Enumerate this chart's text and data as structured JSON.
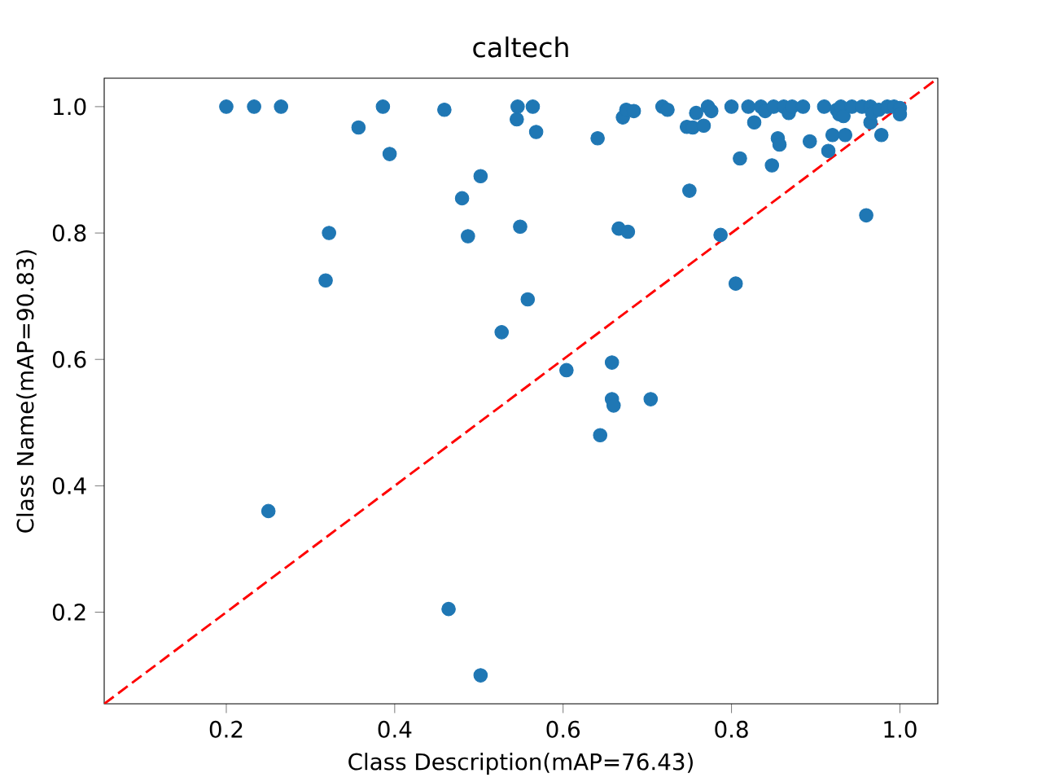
{
  "chart_data": {
    "type": "scatter",
    "title": "caltech",
    "xlabel": "Class Description(mAP=76.43)",
    "ylabel": "Class Name(mAP=90.83)",
    "xlim": [
      0.055,
      1.045
    ],
    "ylim": [
      0.055,
      1.045
    ],
    "xticks": [
      0.2,
      0.4,
      0.6,
      0.8,
      {
        "value": 1.0,
        "label": "1.0"
      }
    ],
    "yticks": [
      0.2,
      0.4,
      0.6,
      0.8,
      {
        "value": 1.0,
        "label": "1.0"
      }
    ],
    "series": [
      {
        "color": "#1f77b4",
        "marker": "circle",
        "x": [
          0.2,
          0.233,
          0.265,
          0.357,
          0.386,
          0.394,
          0.459,
          0.318,
          0.322,
          0.25,
          0.48,
          0.487,
          0.502,
          0.545,
          0.546,
          0.549,
          0.564,
          0.558,
          0.568,
          0.527,
          0.604,
          0.464,
          0.502,
          0.641,
          0.644,
          0.658,
          0.658,
          0.66,
          0.666,
          0.671,
          0.675,
          0.677,
          0.684,
          0.704,
          0.718,
          0.724,
          0.747,
          0.75,
          0.754,
          0.758,
          0.767,
          0.772,
          0.776,
          0.787,
          0.8,
          0.805,
          0.81,
          0.82,
          0.827,
          0.835,
          0.84,
          0.848,
          0.85,
          0.855,
          0.857,
          0.862,
          0.868,
          0.872,
          0.885,
          0.893,
          0.91,
          0.915,
          0.92,
          0.925,
          0.928,
          0.93,
          0.933,
          0.935,
          0.943,
          0.955,
          0.96,
          0.965,
          0.965,
          0.967,
          0.975,
          0.978,
          0.985,
          0.993,
          1.0,
          1.0
        ],
        "values": [
          1.0,
          1.0,
          1.0,
          0.967,
          1.0,
          0.925,
          0.995,
          0.725,
          0.8,
          0.36,
          0.855,
          0.795,
          0.89,
          0.98,
          1.0,
          0.81,
          1.0,
          0.695,
          0.96,
          0.643,
          0.583,
          0.205,
          0.1,
          0.95,
          0.48,
          0.595,
          0.537,
          0.527,
          0.807,
          0.983,
          0.995,
          0.802,
          0.993,
          0.537,
          1.0,
          0.995,
          0.968,
          0.867,
          0.967,
          0.99,
          0.97,
          1.0,
          0.993,
          0.797,
          1.0,
          0.72,
          0.918,
          1.0,
          0.975,
          1.0,
          0.993,
          0.907,
          1.0,
          0.95,
          0.94,
          1.0,
          0.99,
          1.0,
          1.0,
          0.945,
          1.0,
          0.93,
          0.955,
          0.995,
          0.988,
          1.0,
          0.985,
          0.955,
          1.0,
          1.0,
          0.828,
          1.0,
          0.975,
          0.99,
          0.995,
          0.955,
          1.0,
          1.0,
          0.998,
          0.988
        ]
      },
      {
        "type": "line",
        "color": "#ff0000",
        "marker": "none",
        "line_style": "dashed",
        "x": [
          0.055,
          1.045
        ],
        "values": [
          0.055,
          1.045
        ]
      }
    ]
  }
}
